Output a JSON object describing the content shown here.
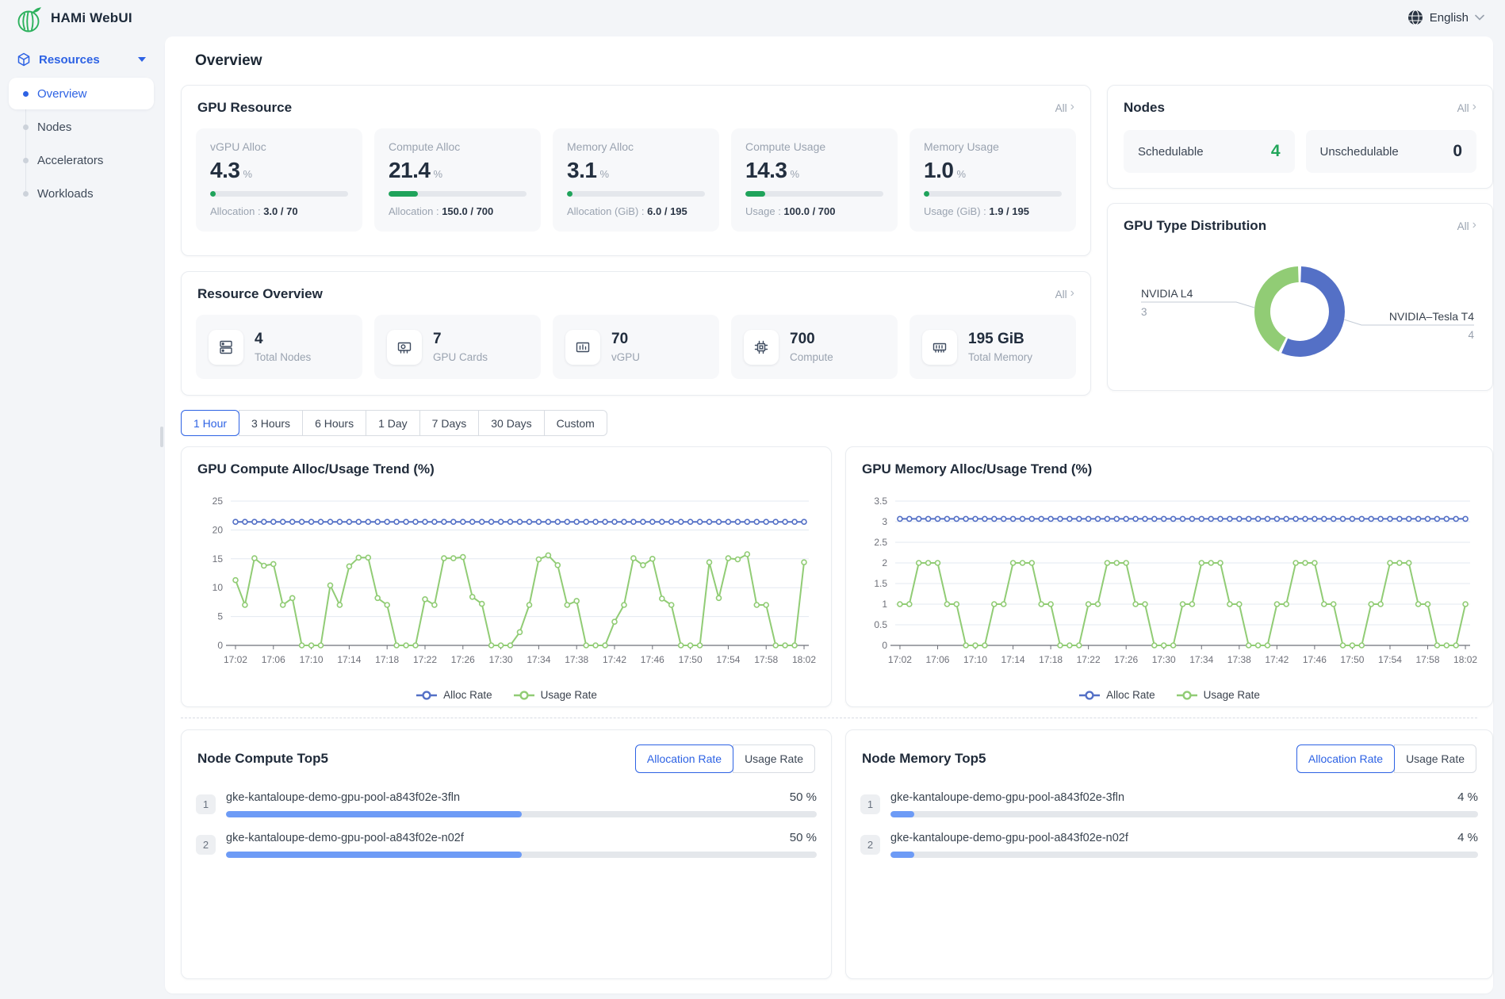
{
  "app": {
    "title": "HAMi WebUI"
  },
  "header": {
    "language": "English"
  },
  "sidebar": {
    "group": {
      "label": "Resources"
    },
    "items": [
      {
        "label": "Overview",
        "active": true
      },
      {
        "label": "Nodes",
        "active": false
      },
      {
        "label": "Accelerators",
        "active": false
      },
      {
        "label": "Workloads",
        "active": false
      }
    ]
  },
  "main": {
    "title": "Overview",
    "all_label": "All"
  },
  "gpu_resource": {
    "title": "GPU Resource",
    "metrics": [
      {
        "label": "vGPU Alloc",
        "value": "4.3",
        "suffix": "%",
        "percent": 4.3,
        "caption": "Allocation :",
        "caption_value": "3.0 / 70"
      },
      {
        "label": "Compute Alloc",
        "value": "21.4",
        "suffix": "%",
        "percent": 21.4,
        "caption": "Allocation :",
        "caption_value": "150.0 / 700"
      },
      {
        "label": "Memory Alloc",
        "value": "3.1",
        "suffix": "%",
        "percent": 3.1,
        "caption": "Allocation (GiB) :",
        "caption_value": "6.0 / 195"
      },
      {
        "label": "Compute Usage",
        "value": "14.3",
        "suffix": "%",
        "percent": 14.3,
        "caption": "Usage :",
        "caption_value": "100.0 / 700"
      },
      {
        "label": "Memory Usage",
        "value": "1.0",
        "suffix": "%",
        "percent": 1.0,
        "caption": "Usage (GiB) :",
        "caption_value": "1.9 / 195"
      }
    ]
  },
  "nodes_card": {
    "title": "Nodes",
    "stats": [
      {
        "label": "Schedulable",
        "value": "4",
        "color": "#21a65a"
      },
      {
        "label": "Unschedulable",
        "value": "0",
        "color": "#232e3e"
      }
    ]
  },
  "resource_overview": {
    "title": "Resource Overview",
    "items": [
      {
        "icon": "nodes-icon",
        "value": "4",
        "label": "Total Nodes"
      },
      {
        "icon": "gpu-card-icon",
        "value": "7",
        "label": "GPU Cards"
      },
      {
        "icon": "vgpu-icon",
        "value": "70",
        "label": "vGPU"
      },
      {
        "icon": "compute-icon",
        "value": "700",
        "label": "Compute"
      },
      {
        "icon": "memory-icon",
        "value": "195 GiB",
        "label": "Total Memory"
      }
    ]
  },
  "time_tabs": {
    "options": [
      "1 Hour",
      "3 Hours",
      "6 Hours",
      "1 Day",
      "7 Days",
      "30 Days",
      "Custom"
    ],
    "active": 0
  },
  "chart_data": [
    {
      "type": "line",
      "title": "GPU Compute Alloc/Usage Trend (%)",
      "x_labels": [
        "17:02",
        "17:06",
        "17:10",
        "17:14",
        "17:18",
        "17:22",
        "17:26",
        "17:30",
        "17:34",
        "17:38",
        "17:42",
        "17:46",
        "17:50",
        "17:54",
        "17:58",
        "18:02"
      ],
      "n_points": 61,
      "ylim": [
        0,
        25
      ],
      "yticks": [
        0,
        5,
        10,
        15,
        20,
        25
      ],
      "legend_position": "bottom",
      "grid": true,
      "series": [
        {
          "name": "Alloc Rate",
          "color": "#5470c6",
          "flat": 21.4
        },
        {
          "name": "Usage Rate",
          "color": "#91cc75",
          "values": [
            11.3,
            7,
            15.1,
            13.8,
            14.1,
            7,
            8.2,
            0,
            0,
            0,
            10.4,
            7,
            13.7,
            15.2,
            15.2,
            8.2,
            7,
            0,
            0,
            0,
            8,
            7,
            15.1,
            15.1,
            15.3,
            8.4,
            7.2,
            0,
            0,
            0,
            2.3,
            7,
            14.9,
            15.6,
            13.9,
            7,
            7.7,
            0,
            0,
            0,
            4.1,
            7,
            15.1,
            13.9,
            15,
            8.1,
            7,
            0,
            0,
            0,
            14.4,
            8.2,
            15.1,
            14.9,
            15.8,
            7,
            7,
            0,
            0,
            0,
            14.4
          ]
        }
      ]
    },
    {
      "type": "line",
      "title": "GPU Memory Alloc/Usage Trend (%)",
      "x_labels": [
        "17:02",
        "17:06",
        "17:10",
        "17:14",
        "17:18",
        "17:22",
        "17:26",
        "17:30",
        "17:34",
        "17:38",
        "17:42",
        "17:46",
        "17:50",
        "17:54",
        "17:58",
        "18:02"
      ],
      "n_points": 61,
      "ylim": [
        0,
        3.5
      ],
      "yticks": [
        0,
        0.5,
        1,
        1.5,
        2,
        2.5,
        3,
        3.5
      ],
      "legend_position": "bottom",
      "grid": true,
      "series": [
        {
          "name": "Alloc Rate",
          "color": "#5470c6",
          "flat": 3.07
        },
        {
          "name": "Usage Rate",
          "color": "#91cc75",
          "values": [
            1,
            1,
            2,
            2,
            2,
            1,
            1,
            0,
            0,
            0,
            1,
            1,
            2,
            2,
            2,
            1,
            1,
            0,
            0,
            0,
            1,
            1,
            2,
            2,
            2,
            1,
            1,
            0,
            0,
            0,
            1,
            1,
            2,
            2,
            2,
            1,
            1,
            0,
            0,
            0,
            1,
            1,
            2,
            2,
            2,
            1,
            1,
            0,
            0,
            0,
            1,
            1,
            2,
            2,
            2,
            1,
            1,
            0,
            0,
            0,
            1
          ]
        }
      ]
    },
    {
      "type": "pie",
      "title": "GPU Type Distribution",
      "slices": [
        {
          "label": "NVIDIA L4",
          "value": 3,
          "color": "#91cc75"
        },
        {
          "label": "NVIDIA–Tesla T4",
          "value": 4,
          "color": "#5470c6"
        }
      ]
    }
  ],
  "top5": [
    {
      "title": "Node Compute Top5",
      "toggle": [
        "Allocation Rate",
        "Usage Rate"
      ],
      "active": 0,
      "rows": [
        {
          "rank": "1",
          "name": "gke-kantaloupe-demo-gpu-pool-a843f02e-3fln",
          "value": "50 %",
          "percent": 50
        },
        {
          "rank": "2",
          "name": "gke-kantaloupe-demo-gpu-pool-a843f02e-n02f",
          "value": "50 %",
          "percent": 50
        }
      ]
    },
    {
      "title": "Node Memory Top5",
      "toggle": [
        "Allocation Rate",
        "Usage Rate"
      ],
      "active": 0,
      "rows": [
        {
          "rank": "1",
          "name": "gke-kantaloupe-demo-gpu-pool-a843f02e-3fln",
          "value": "4 %",
          "percent": 4
        },
        {
          "rank": "2",
          "name": "gke-kantaloupe-demo-gpu-pool-a843f02e-n02f",
          "value": "4 %",
          "percent": 4
        }
      ]
    }
  ],
  "colors": {
    "accent": "#2d62e4",
    "chart_blue": "#5470c6",
    "chart_green": "#91cc75",
    "progress_green": "#1fa35b",
    "bar_blue": "#6d9bf6"
  }
}
